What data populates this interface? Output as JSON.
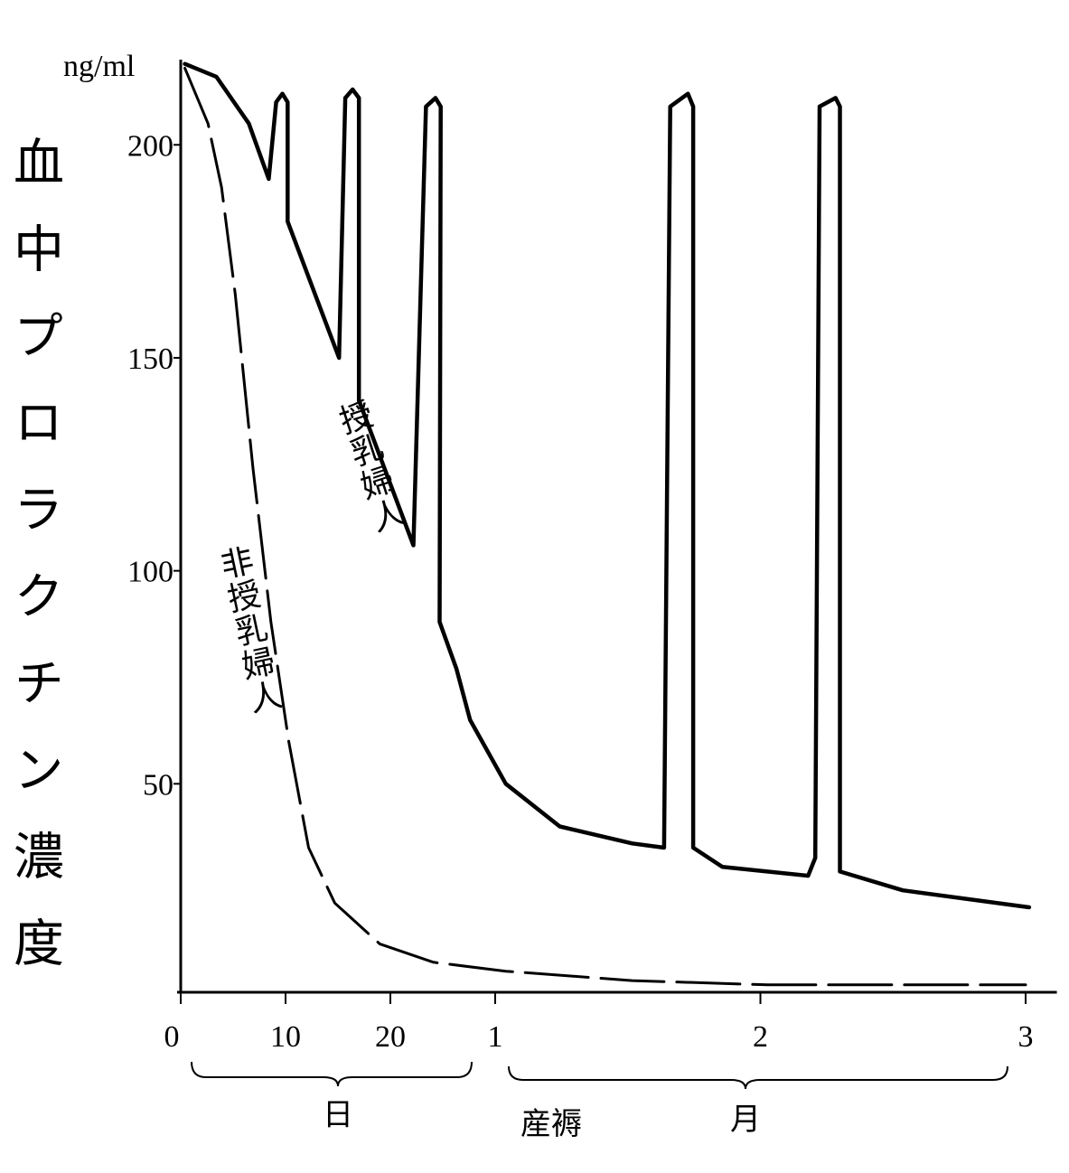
{
  "chart_data": {
    "type": "line",
    "y_label": "血中プロラクチン濃度",
    "y_unit": "ng/ml",
    "x_group_labels": [
      "日",
      "産褥",
      "月"
    ],
    "xlim": [
      0,
      92
    ],
    "xticks": [
      0,
      10,
      20,
      {
        "value": 30,
        "label": "1"
      },
      {
        "value": 60,
        "label": "2"
      },
      {
        "value": 90,
        "label": "3"
      }
    ],
    "ylim": [
      0,
      220
    ],
    "yticks": [
      50,
      100,
      150,
      200
    ],
    "series": [
      {
        "name": "授乳婦人",
        "color": "#000000",
        "dash": false,
        "x": [
          0.4,
          3.4,
          6.5,
          8.4,
          9.1,
          9.7,
          10.2,
          10.2,
          15.1,
          15.7,
          16.4,
          17.0,
          17.0,
          22.2,
          23.4,
          24.3,
          24.8,
          24.7,
          26.3,
          27.6,
          31.2,
          37.3,
          45.5,
          49.1,
          49.8,
          51.8,
          52.4,
          52.4,
          55.7,
          65.4,
          66.2,
          66.7,
          68.5,
          69.0,
          69.0,
          76.1,
          90.4
        ],
        "values": [
          219,
          216,
          205,
          192,
          210,
          212,
          210,
          182,
          150,
          211,
          213,
          211,
          140,
          106,
          209,
          211,
          209,
          88,
          77,
          65,
          50,
          40,
          36,
          35,
          209,
          212,
          209,
          35,
          30.5,
          28.4,
          32.6,
          209,
          211,
          209,
          29.4,
          25,
          21
        ]
      },
      {
        "name": "非授乳婦人",
        "color": "#000000",
        "dash": true,
        "x": [
          0.4,
          2.6,
          3.9,
          5.2,
          6.9,
          8.6,
          10.3,
          12.2,
          14.7,
          19.0,
          24.1,
          31.2,
          45.5,
          60.8,
          90
        ],
        "values": [
          218,
          205,
          190,
          165,
          124,
          88,
          60,
          35,
          22,
          12.4,
          8.1,
          6,
          3.8,
          2.8,
          2.8
        ]
      }
    ]
  }
}
